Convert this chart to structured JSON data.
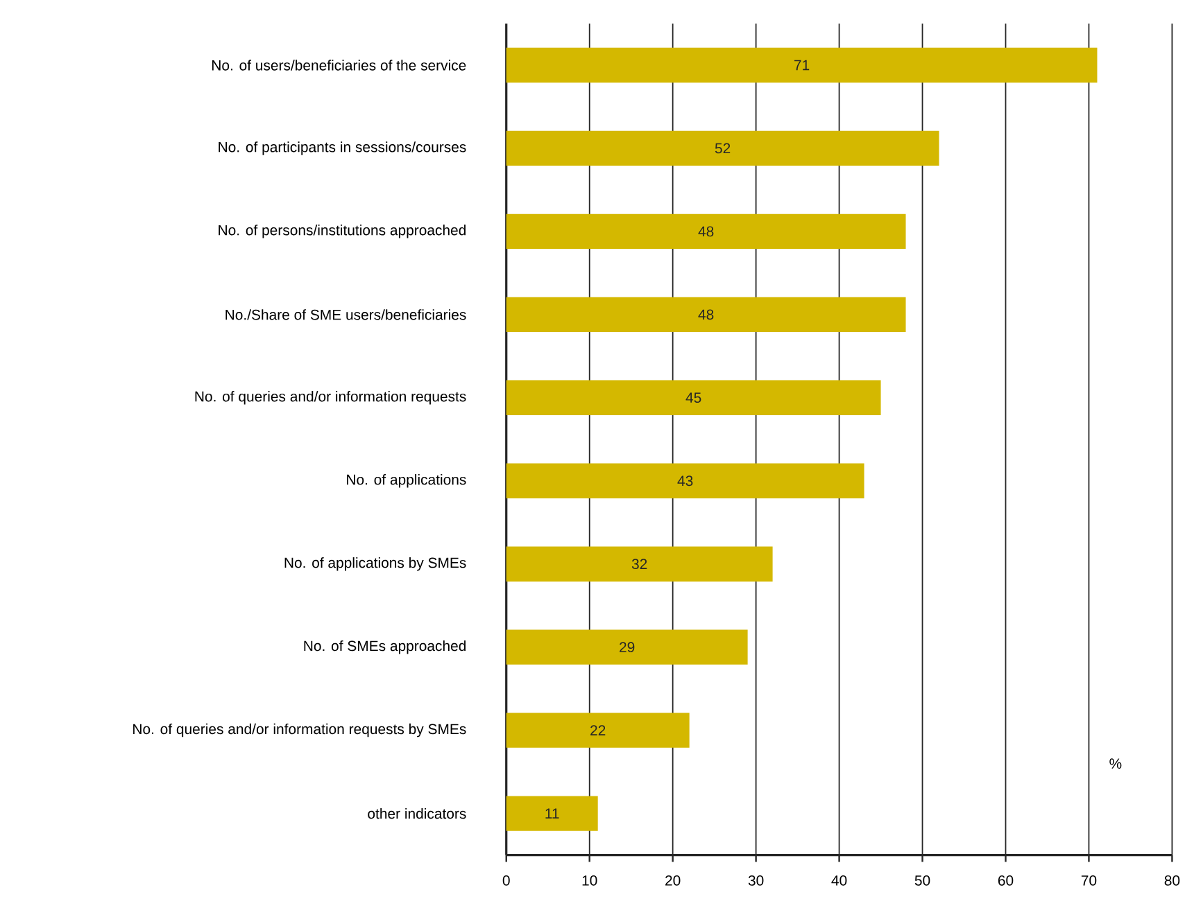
{
  "chart_data": {
    "type": "bar",
    "orientation": "horizontal",
    "xlabel": "%",
    "categories": [
      "No. of users/beneficiaries of the service",
      "No. of participants in sessions/courses",
      "No. of persons/institutions approached",
      "No./Share of SME users/beneficiaries",
      "No. of queries and/or information requests",
      "No. of applications",
      "No. of applications by SMEs",
      "No. of SMEs approached",
      "No. of queries and/or information requests by SMEs",
      "other indicators"
    ],
    "values": [
      71,
      52,
      48,
      48,
      45,
      43,
      32,
      29,
      22,
      11
    ],
    "color": "#d4b800",
    "xlim": [
      0,
      80
    ],
    "xticks": [
      0,
      10,
      20,
      30,
      40,
      50,
      60,
      70,
      80
    ],
    "grid": "x",
    "data_labels": true
  }
}
